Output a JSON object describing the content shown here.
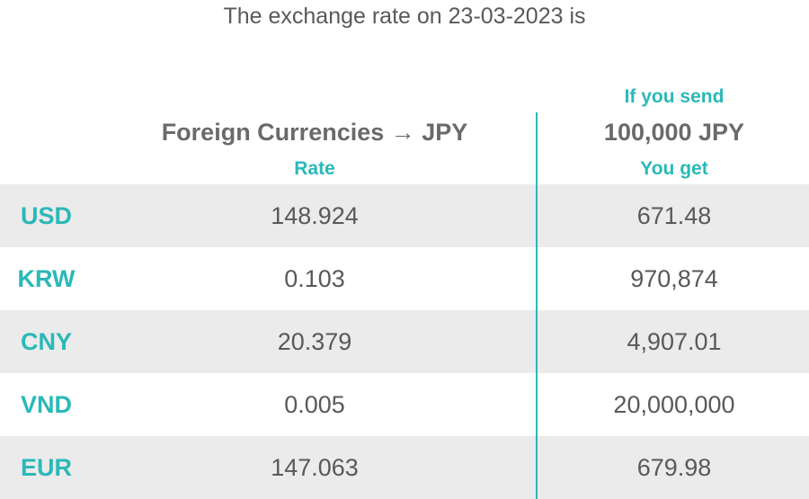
{
  "title": "The exchange rate on 23-03-2023 is",
  "headers": {
    "if_you_send": "If you send",
    "foreign_currencies": "Foreign Currencies → JPY",
    "send_amount": "100,000 JPY",
    "rate": "Rate",
    "you_get": "You get"
  },
  "colors": {
    "accent": "#2bb8b8",
    "text": "#595959",
    "row_shade": "#ebebeb"
  },
  "rows": [
    {
      "code": "USD",
      "rate": "148.924",
      "get": "671.48"
    },
    {
      "code": "KRW",
      "rate": "0.103",
      "get": "970,874"
    },
    {
      "code": "CNY",
      "rate": "20.379",
      "get": "4,907.01"
    },
    {
      "code": "VND",
      "rate": "0.005",
      "get": "20,000,000"
    },
    {
      "code": "EUR",
      "rate": "147.063",
      "get": "679.98"
    }
  ]
}
